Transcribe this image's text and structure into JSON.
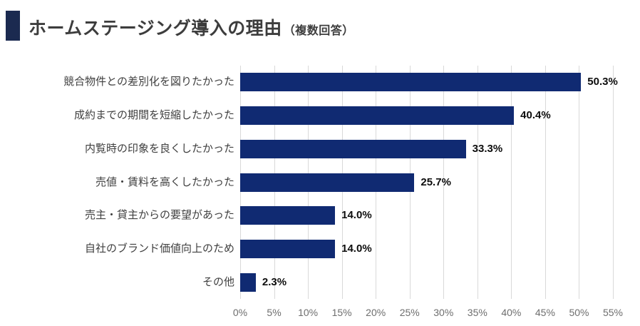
{
  "title": {
    "main": "ホームステージング導入の理由",
    "suffix": "（複数回答）"
  },
  "colors": {
    "bar": "#102a72",
    "title_marker": "#1b2a50",
    "gridline": "#d9d9d9",
    "axis_label_text": "#6e6e6e",
    "category_label_text": "#404040",
    "value_label_text": "#0d0d0d",
    "background": "#ffffff"
  },
  "chart_data": {
    "type": "bar",
    "orientation": "horizontal",
    "title": "ホームステージング導入の理由（複数回答）",
    "categories": [
      "競合物件との差別化を図りたかった",
      "成約までの期間を短縮したかった",
      "内覧時の印象を良くしたかった",
      "売値・賃料を高くしたかった",
      "売主・貸主からの要望があった",
      "自社のブランド価値向上のため",
      "その他"
    ],
    "values": [
      50.3,
      40.4,
      33.3,
      25.7,
      14.0,
      14.0,
      2.3
    ],
    "value_labels": [
      "50.3%",
      "40.4%",
      "33.3%",
      "25.7%",
      "14.0%",
      "14.0%",
      "2.3%"
    ],
    "xlabel": "",
    "ylabel": "",
    "xlim": [
      0,
      55
    ],
    "x_ticks": [
      "0%",
      "5%",
      "10%",
      "15%",
      "20%",
      "25%",
      "30%",
      "35%",
      "40%",
      "45%",
      "50%",
      "55%"
    ],
    "x_tick_values": [
      0,
      5,
      10,
      15,
      20,
      25,
      30,
      35,
      40,
      45,
      50,
      55
    ],
    "grid": true,
    "legend": false
  }
}
